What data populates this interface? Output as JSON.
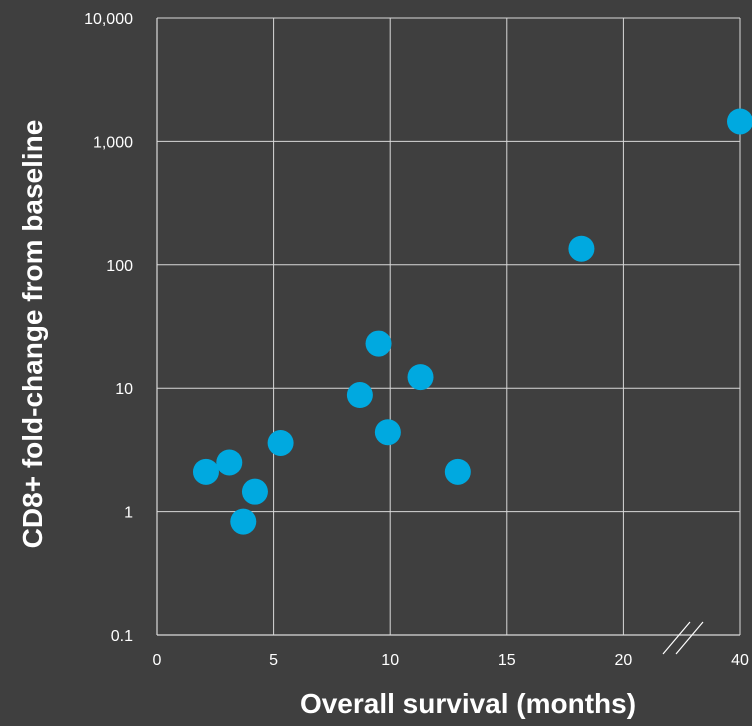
{
  "chart_data": {
    "type": "scatter",
    "title": "",
    "xlabel": "Overall survival (months)",
    "ylabel": "CD8+ fold-change from baseline",
    "x_ticks": [
      "0",
      "5",
      "10",
      "15",
      "20",
      "40"
    ],
    "x_tick_values": [
      0,
      5,
      10,
      15,
      20,
      40
    ],
    "x_axis_break": "between 20 and 40",
    "y_scale": "log",
    "y_ticks": [
      "0.1",
      "1",
      "10",
      "100",
      "1,000",
      "10,000"
    ],
    "y_tick_values": [
      0.1,
      1,
      10,
      100,
      1000,
      10000
    ],
    "ylim": [
      0.1,
      10000
    ],
    "grid": true,
    "point_color": "#00a9e0",
    "grid_color": "#d9d9d9",
    "background_color": "#3f3f3f",
    "points": [
      {
        "x": 2.1,
        "y": 2.1
      },
      {
        "x": 3.1,
        "y": 2.5
      },
      {
        "x": 3.7,
        "y": 0.83
      },
      {
        "x": 4.2,
        "y": 1.45
      },
      {
        "x": 5.3,
        "y": 3.6
      },
      {
        "x": 8.7,
        "y": 8.8
      },
      {
        "x": 9.5,
        "y": 23
      },
      {
        "x": 9.9,
        "y": 4.4
      },
      {
        "x": 11.3,
        "y": 12.3
      },
      {
        "x": 12.9,
        "y": 2.1
      },
      {
        "x": 18.2,
        "y": 135
      },
      {
        "x": 40,
        "y": 1450
      }
    ]
  }
}
